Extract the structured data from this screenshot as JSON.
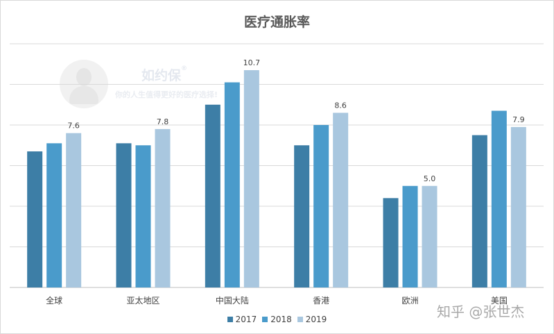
{
  "chart_data": {
    "type": "bar",
    "title": "医疗通胀率",
    "categories": [
      "全球",
      "亚太地区",
      "中国大陆",
      "香港",
      "欧洲",
      "美国"
    ],
    "series": [
      {
        "name": "2017",
        "color": "#3d7ea6",
        "values": [
          6.7,
          7.1,
          9.0,
          7.0,
          4.4,
          7.5
        ]
      },
      {
        "name": "2018",
        "color": "#4a9bcb",
        "values": [
          7.1,
          7.0,
          10.1,
          8.0,
          5.0,
          8.7
        ]
      },
      {
        "name": "2019",
        "color": "#a9c7df",
        "values": [
          7.6,
          7.8,
          10.7,
          8.6,
          5.0,
          7.9
        ]
      }
    ],
    "data_labels": {
      "series": "2019",
      "values": [
        "7.6",
        "7.8",
        "10.7",
        "8.6",
        "5.0",
        "7.9"
      ]
    },
    "ylim": [
      0,
      12
    ],
    "ytick_step": 2,
    "y_axis_labels_visible": false,
    "grid": true,
    "legend_position": "bottom"
  },
  "watermark": {
    "brand": "如约保",
    "reg_mark": "®",
    "slogan": "你的人生值得更好的医疗选择!"
  },
  "credit": "知乎 @张世杰"
}
